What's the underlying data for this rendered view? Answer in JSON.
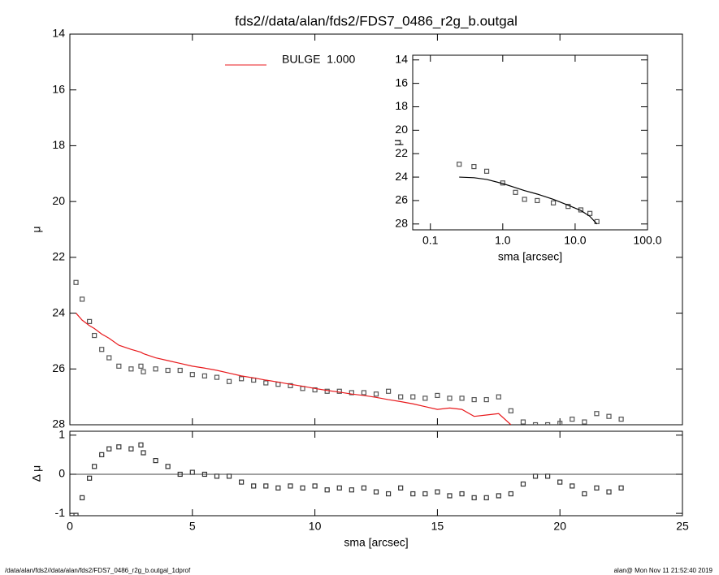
{
  "chart_data": [
    {
      "type": "line",
      "title": "fds2//data/alan/fds2/FDS7_0486_r2g_b.outgal",
      "ylabel": "μ",
      "xlim": [
        0,
        25
      ],
      "xticks": [
        0,
        5,
        10,
        15,
        20,
        25
      ],
      "xtick_labels": false,
      "ylim": [
        28,
        14
      ],
      "yticks": [
        14,
        16,
        18,
        20,
        22,
        24,
        26,
        28
      ],
      "legend": "upper-left",
      "x": [
        0.25,
        0.5,
        0.8,
        1.0,
        1.3,
        1.6,
        2.0,
        2.5,
        2.9,
        3.0,
        3.5,
        4.0,
        4.5,
        5.0,
        5.5,
        6.0,
        6.5,
        7.0,
        7.5,
        8.0,
        8.5,
        9.0,
        9.5,
        10.0,
        10.5,
        11.0,
        11.5,
        12.0,
        12.5,
        13.0,
        13.5,
        14.0,
        14.5,
        15.0,
        15.5,
        16.0,
        16.5,
        17.0,
        17.5,
        18.0,
        18.5,
        19.0,
        19.5,
        20.0,
        20.5,
        21.0,
        21.5,
        22.0,
        22.5
      ],
      "series": [
        {
          "marker": "square",
          "color": "#555555",
          "values": [
            22.9,
            23.5,
            24.3,
            24.8,
            25.3,
            25.6,
            25.9,
            26.0,
            25.9,
            26.1,
            26.0,
            26.05,
            26.05,
            26.2,
            26.25,
            26.3,
            26.45,
            26.35,
            26.4,
            26.5,
            26.55,
            26.6,
            26.7,
            26.75,
            26.8,
            26.8,
            26.85,
            26.85,
            26.9,
            26.8,
            27.0,
            27.0,
            27.05,
            26.95,
            27.05,
            27.05,
            27.1,
            27.1,
            27.0,
            27.5,
            27.9,
            28.0,
            28.0,
            27.95,
            27.8,
            27.9,
            27.6,
            27.7,
            27.8
          ]
        },
        {
          "name": "BULGE  1.000",
          "color": "#e8191c",
          "values": [
            24.0,
            24.25,
            24.45,
            24.55,
            24.75,
            24.9,
            25.15,
            25.3,
            25.4,
            25.45,
            25.6,
            25.7,
            25.8,
            25.9,
            25.97,
            26.05,
            26.15,
            26.25,
            26.32,
            26.4,
            26.47,
            26.55,
            26.62,
            26.7,
            26.77,
            26.83,
            26.9,
            26.95,
            27.02,
            27.1,
            27.17,
            27.25,
            27.35,
            27.45,
            27.4,
            27.45,
            27.7,
            27.65,
            27.6,
            28.0,
            null,
            null,
            null,
            null,
            null,
            null,
            null,
            null,
            null
          ]
        }
      ]
    },
    {
      "type": "line",
      "ylabel": "Δ μ",
      "xlabel": "sma [arcsec]",
      "xlim": [
        0,
        25
      ],
      "xticks": [
        0,
        5,
        10,
        15,
        20,
        25
      ],
      "ylim": [
        -1.06,
        1.1
      ],
      "yticks": [
        -1,
        0,
        1
      ],
      "hline": 0,
      "x": [
        0.25,
        0.5,
        0.8,
        1.0,
        1.3,
        1.6,
        2.0,
        2.5,
        2.9,
        3.0,
        3.5,
        4.0,
        4.5,
        5.0,
        5.5,
        6.0,
        6.5,
        7.0,
        7.5,
        8.0,
        8.5,
        9.0,
        9.5,
        10.0,
        10.5,
        11.0,
        11.5,
        12.0,
        12.5,
        13.0,
        13.5,
        14.0,
        14.5,
        15.0,
        15.5,
        16.0,
        16.5,
        17.0,
        17.5,
        18.0,
        18.5,
        19.0,
        19.5,
        20.0,
        20.5,
        21.0,
        21.5,
        22.0,
        22.5
      ],
      "series": [
        {
          "marker": "square",
          "color": "#333333",
          "values": [
            -1.05,
            -0.6,
            -0.1,
            0.2,
            0.5,
            0.65,
            0.7,
            0.65,
            0.75,
            0.55,
            0.35,
            0.2,
            0.0,
            0.05,
            0.0,
            -0.05,
            -0.05,
            -0.2,
            -0.3,
            -0.3,
            -0.35,
            -0.3,
            -0.35,
            -0.3,
            -0.4,
            -0.35,
            -0.4,
            -0.35,
            -0.45,
            -0.5,
            -0.35,
            -0.5,
            -0.5,
            -0.45,
            -0.55,
            -0.5,
            -0.6,
            -0.6,
            -0.55,
            -0.5,
            -0.25,
            -0.05,
            -0.05,
            -0.2,
            -0.3,
            -0.5,
            -0.35,
            -0.45,
            -0.35
          ]
        }
      ]
    },
    {
      "type": "line",
      "ylabel": "μ",
      "xlabel": "sma [arcsec]",
      "xscale": "log",
      "xlim": [
        0.057,
        100
      ],
      "xticks": [
        {
          "value": 0.1,
          "label": "0.1"
        },
        {
          "value": 1,
          "label": "1.0"
        },
        {
          "value": 10,
          "label": "10.0"
        },
        {
          "value": 100,
          "label": "100.0"
        }
      ],
      "ylim": [
        28.5,
        13.6
      ],
      "yticks": [
        14,
        16,
        18,
        20,
        22,
        24,
        26,
        28
      ],
      "x": [
        0.25,
        0.4,
        0.6,
        1.0,
        1.5,
        2.0,
        3.0,
        5.0,
        8.0,
        12.0,
        16.0,
        20.0
      ],
      "series": [
        {
          "marker": "square",
          "color": "#555555",
          "values": [
            22.9,
            23.1,
            23.5,
            24.5,
            25.3,
            25.9,
            26.0,
            26.2,
            26.5,
            26.8,
            27.1,
            27.8
          ]
        },
        {
          "color": "#000000",
          "values": [
            24.0,
            24.05,
            24.2,
            24.55,
            24.9,
            25.15,
            25.45,
            25.9,
            26.4,
            26.85,
            27.35,
            28.0
          ]
        }
      ]
    }
  ],
  "footer": {
    "left": "/data/alan/fds2//data/alan/fds2/FDS7_0486_r2g_b.outgal_1dprof",
    "right": "alan@  Mon Nov 11 21:52:40 2019"
  }
}
